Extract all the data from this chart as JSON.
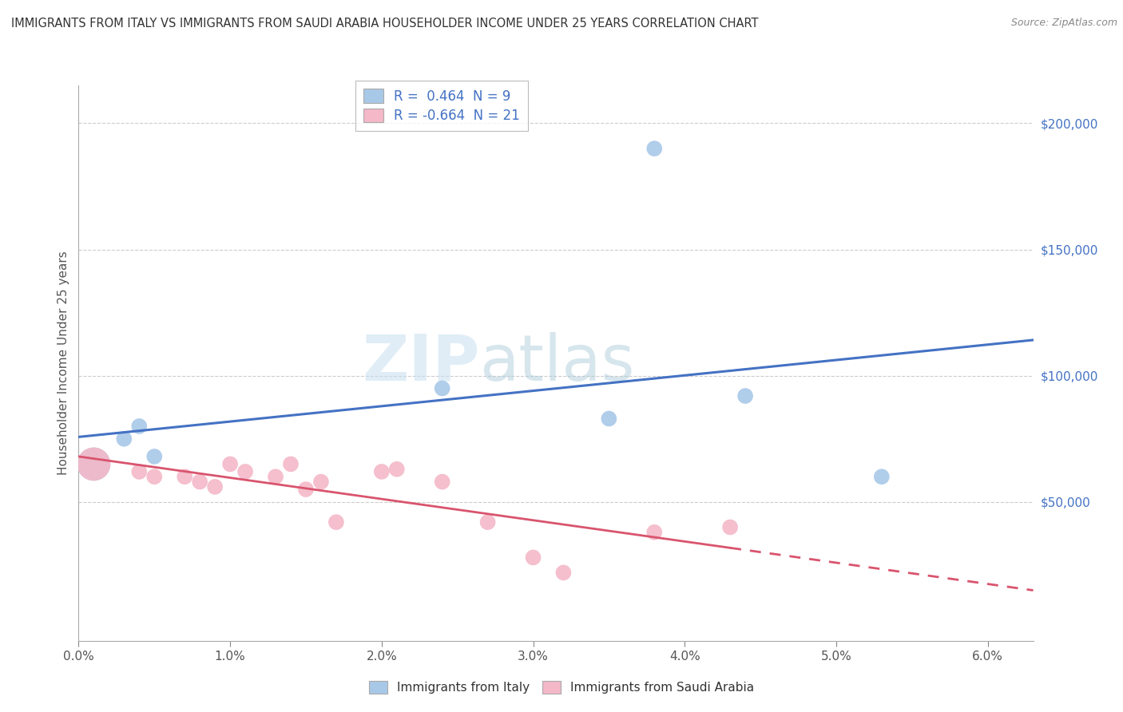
{
  "title": "IMMIGRANTS FROM ITALY VS IMMIGRANTS FROM SAUDI ARABIA HOUSEHOLDER INCOME UNDER 25 YEARS CORRELATION CHART",
  "source": "Source: ZipAtlas.com",
  "ylabel": "Householder Income Under 25 years",
  "italy_R": 0.464,
  "italy_N": 9,
  "saudi_R": -0.664,
  "saudi_N": 21,
  "italy_color": "#a8c8e8",
  "italy_line_color": "#4472c4",
  "saudi_color": "#f4b8c8",
  "saudi_line_color": "#d9546e",
  "xlim": [
    0.0,
    0.063
  ],
  "ylim": [
    -5000,
    215000
  ],
  "yticks": [
    0,
    50000,
    100000,
    150000,
    200000
  ],
  "ytick_labels": [
    "",
    "$50,000",
    "$100,000",
    "$150,000",
    "$200,000"
  ],
  "xticks": [
    0.0,
    0.01,
    0.02,
    0.03,
    0.04,
    0.05,
    0.06
  ],
  "xtick_labels": [
    "0.0%",
    "1.0%",
    "2.0%",
    "3.0%",
    "4.0%",
    "5.0%",
    "6.0%"
  ],
  "italy_scatter": {
    "x": [
      0.001,
      0.003,
      0.004,
      0.005,
      0.024,
      0.035,
      0.038,
      0.044,
      0.053
    ],
    "y": [
      65000,
      75000,
      80000,
      68000,
      95000,
      83000,
      190000,
      92000,
      60000
    ],
    "sizes": [
      900,
      200,
      200,
      200,
      200,
      200,
      200,
      200,
      200
    ]
  },
  "saudi_scatter": {
    "x": [
      0.001,
      0.004,
      0.005,
      0.007,
      0.008,
      0.009,
      0.01,
      0.011,
      0.013,
      0.014,
      0.015,
      0.016,
      0.017,
      0.02,
      0.021,
      0.024,
      0.027,
      0.03,
      0.032,
      0.038,
      0.043
    ],
    "y": [
      65000,
      62000,
      60000,
      60000,
      58000,
      56000,
      65000,
      62000,
      60000,
      65000,
      55000,
      58000,
      42000,
      62000,
      63000,
      58000,
      42000,
      28000,
      22000,
      38000,
      40000
    ],
    "sizes": [
      900,
      200,
      200,
      200,
      200,
      200,
      200,
      200,
      200,
      200,
      200,
      200,
      200,
      200,
      200,
      200,
      200,
      200,
      200,
      200,
      200
    ]
  },
  "watermark_zip": "ZIP",
  "watermark_atlas": "atlas",
  "background_color": "#ffffff",
  "grid_color": "#cccccc"
}
